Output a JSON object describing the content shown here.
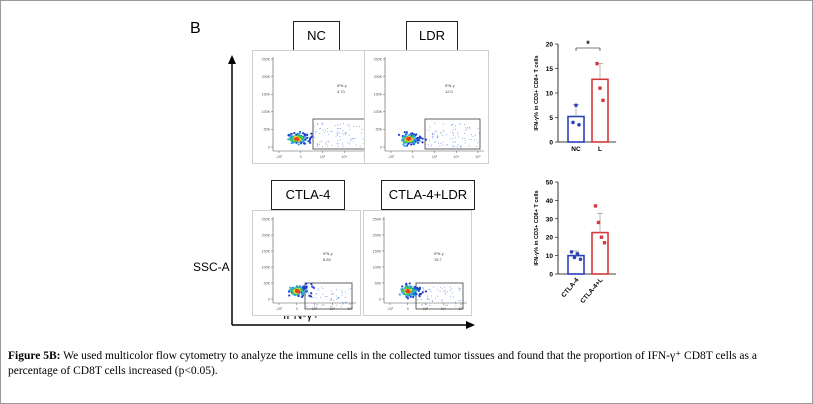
{
  "panel_letter": "B",
  "flow_panels": [
    {
      "label": "NC",
      "gate_label": "IFN-γ",
      "gate_value": "4.70"
    },
    {
      "label": "LDR",
      "gate_label": "IFN-γ",
      "gate_value": "12.0"
    },
    {
      "label": "CTLA-4",
      "gate_label": "IFN-γ",
      "gate_value": "8.83"
    },
    {
      "label": "CTLA-4+LDR",
      "gate_label": "IFN-γ",
      "gate_value": "15.7"
    }
  ],
  "flow_axis": {
    "y_ticks": [
      "250K",
      "200K",
      "150K",
      "100K",
      "50K",
      "0"
    ],
    "x_ticks": [
      "-10³",
      "0",
      "10³",
      "10⁴",
      "10⁵"
    ]
  },
  "axis_labels": {
    "y": "SSC-A",
    "x": "IFN-γ+"
  },
  "chart_data": [
    {
      "type": "bar",
      "ylabel": "IFN-γ% in CD3+ CD8+ T cells",
      "categories": [
        "NC",
        "L"
      ],
      "values": [
        5.2,
        12.8
      ],
      "error": [
        2.5,
        3.2
      ],
      "points": [
        [
          4.0,
          7.5,
          3.5
        ],
        [
          16.0,
          11.0,
          8.5
        ]
      ],
      "ylim": [
        0,
        20
      ],
      "yticks": [
        "0",
        "5",
        "10",
        "15",
        "20"
      ],
      "significance": "*",
      "colors": [
        "#2b3fb8",
        "#d63a3a"
      ]
    },
    {
      "type": "bar",
      "ylabel": "IFN-γ% in CD3+ CD8+ T cells",
      "categories": [
        "CTLA-4",
        "CTLA-4+L"
      ],
      "values": [
        10.0,
        22.5
      ],
      "error": [
        2.5,
        10.5
      ],
      "points": [
        [
          12.0,
          9.0,
          11.0,
          8.0
        ],
        [
          37.0,
          28.0,
          20.0,
          17.0
        ]
      ],
      "ylim": [
        0,
        50
      ],
      "yticks": [
        "0",
        "10",
        "20",
        "30",
        "40",
        "50"
      ],
      "colors": [
        "#2b3fb8",
        "#d63a3a"
      ]
    }
  ],
  "caption": {
    "label": "Figure 5B:",
    "text": " We used multicolor flow cytometry to analyze the immune cells in the collected tumor tissues and found that the proportion of IFN-γ⁺ CD8T cells as a percentage of CD8T cells increased (p<0.05)."
  }
}
